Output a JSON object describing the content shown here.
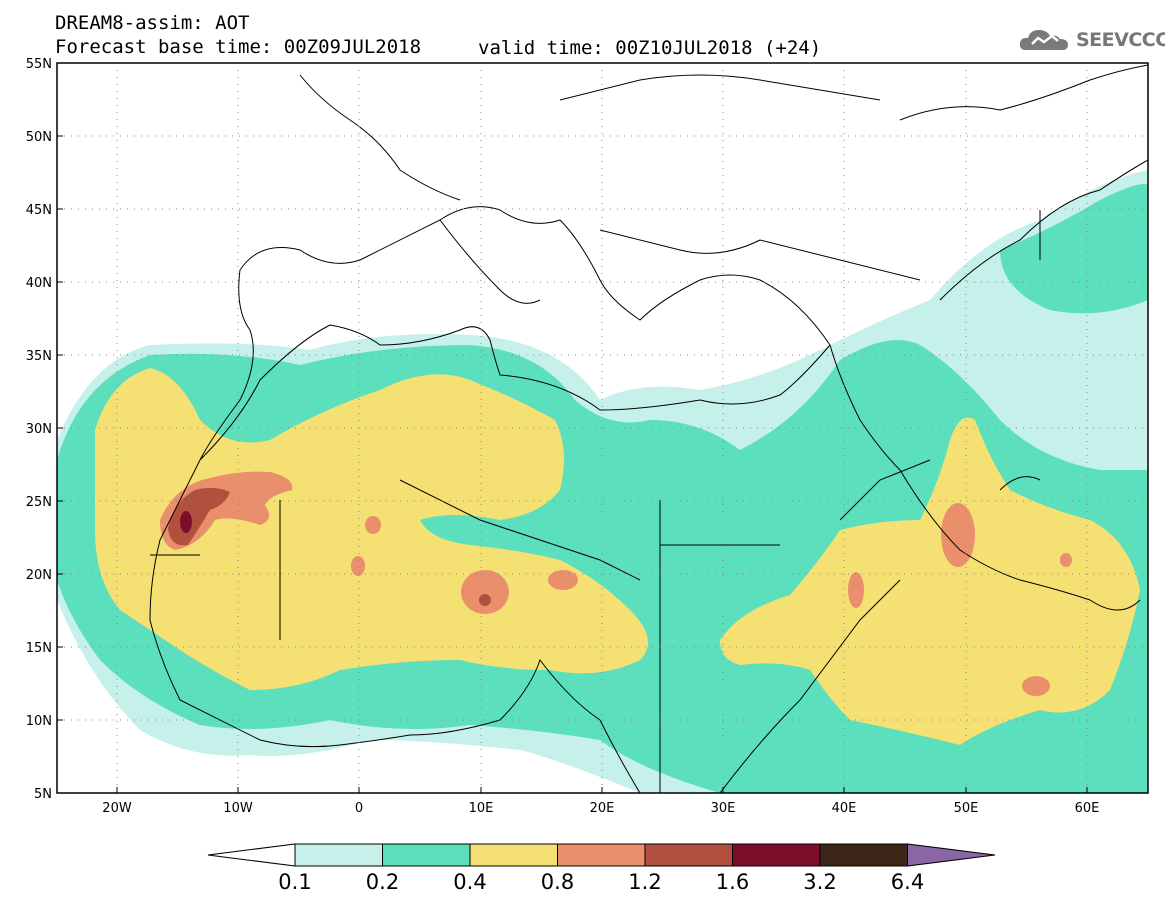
{
  "header": {
    "title": "DREAM8-assim: AOT",
    "base_time": "Forecast base time: 00Z09JUL2018",
    "valid_time": "valid time: 00Z10JUL2018 (+24)"
  },
  "logo": {
    "text": "SEEVCCC",
    "icon": "cloud-icon"
  },
  "axes": {
    "lat_labels": [
      "55N",
      "50N",
      "45N",
      "40N",
      "35N",
      "30N",
      "25N",
      "20N",
      "15N",
      "10N",
      "5N"
    ],
    "lon_labels": [
      "20W",
      "10W",
      "0",
      "10E",
      "20E",
      "30E",
      "40E",
      "50E",
      "60E"
    ]
  },
  "colorbar": {
    "labels": [
      "0.1",
      "0.2",
      "0.4",
      "0.8",
      "1.2",
      "1.6",
      "3.2",
      "6.4"
    ],
    "colors": [
      "#ffffff",
      "#c6f0ea",
      "#5cdfbd",
      "#f5e173",
      "#ea8f6b",
      "#b2503f",
      "#7d0e2b",
      "#3c2617",
      "#8b66a6"
    ]
  },
  "colors": {
    "low": "#c6f0ea",
    "mid": "#5cdfbd",
    "yellow": "#f5e173",
    "orange": "#ea8f6b",
    "brown": "#b2503f",
    "dark": "#7d0e2b"
  }
}
